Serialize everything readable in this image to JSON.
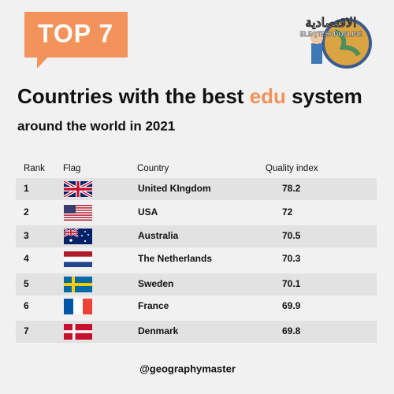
{
  "badge": "TOP 7",
  "logo": {
    "arabic": "الاقتصادية",
    "latin": "ELEQTESADONLINE"
  },
  "title": {
    "before": "Countries with the best ",
    "highlight": "edu",
    "after": " system"
  },
  "subtitle": "around the world in 2021",
  "table": {
    "header": [
      "Rank",
      "Flag",
      "Country",
      "Quality index"
    ],
    "rows": [
      [
        1,
        "United KIngdom",
        78.2
      ],
      [
        2,
        "USA",
        72
      ],
      [
        3,
        "Australia",
        70.5
      ],
      [
        4,
        "The Netherlands",
        70.3
      ],
      [
        5,
        "Sweden",
        70.1
      ],
      [
        6,
        "France",
        69.9
      ],
      [
        7,
        "Denmark",
        69.8
      ]
    ]
  },
  "footer": "@geographymaster"
}
